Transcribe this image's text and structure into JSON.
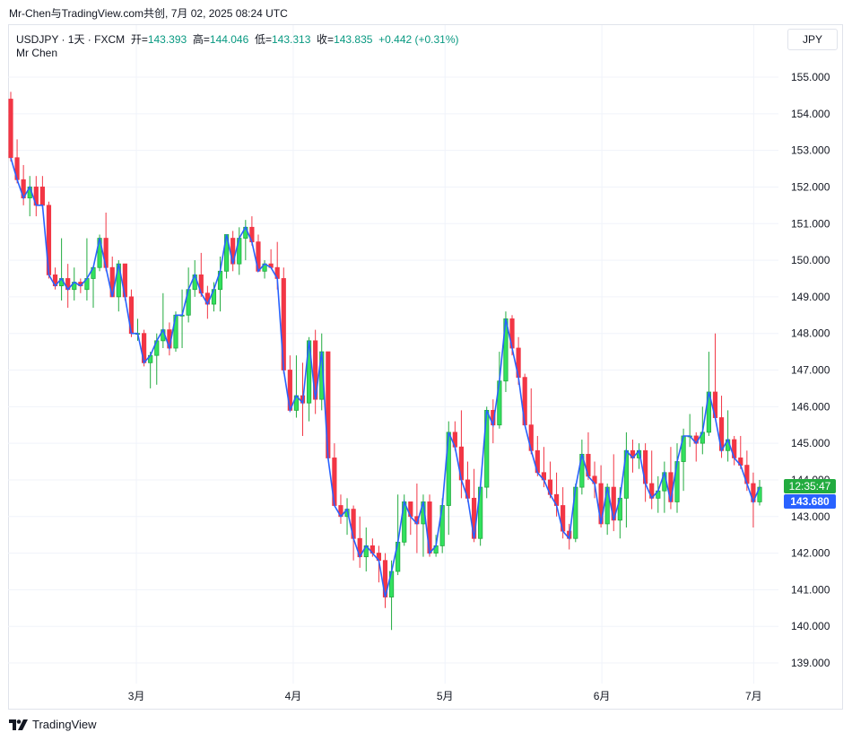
{
  "header": {
    "caption": "Mr-Chen与TradingView.com共创, 7月 02, 2025 08:24 UTC"
  },
  "legend": {
    "symbol": "USDJPY · 1天 · FXCM",
    "open_label": "开=",
    "open": "143.393",
    "high_label": "高=",
    "high": "144.046",
    "low_label": "低=",
    "low": "143.313",
    "close_label": "收=",
    "close": "143.835",
    "change": "+0.442 (+0.31%)",
    "author": "Mr Chen"
  },
  "currency_button": "JPY",
  "last_price": {
    "countdown": "12:35:47",
    "price": "143.680"
  },
  "footer": {
    "brand": "TradingView"
  },
  "colors": {
    "up": "#22ab3f",
    "up_fill": "#32e15e",
    "down": "#f23645",
    "line": "#2962ff",
    "grid": "#f0f3fa"
  },
  "chart_data": {
    "type": "candlestick",
    "y_axis": {
      "min": 138.5,
      "max": 155.5,
      "ticks": [
        "139.000",
        "140.000",
        "141.000",
        "142.000",
        "143.000",
        "144.000",
        "145.000",
        "146.000",
        "147.000",
        "148.000",
        "149.000",
        "150.000",
        "151.000",
        "152.000",
        "153.000",
        "154.000",
        "155.000"
      ]
    },
    "x_axis": {
      "ticks": [
        {
          "label": "3月",
          "date": "2025-03-01"
        },
        {
          "label": "4月",
          "date": "2025-04-01"
        },
        {
          "label": "5月",
          "date": "2025-05-01"
        },
        {
          "label": "6月",
          "date": "2025-06-01"
        },
        {
          "label": "7月",
          "date": "2025-07-01"
        }
      ]
    },
    "start_date": "2025-02-04",
    "end_date": "2025-07-02",
    "candles": [
      [
        154.4,
        154.6,
        152.7,
        152.8
      ],
      [
        152.8,
        153.3,
        152.1,
        152.2
      ],
      [
        152.2,
        152.6,
        151.5,
        151.7
      ],
      [
        151.7,
        152.3,
        151.2,
        152.0
      ],
      [
        152.0,
        152.3,
        151.2,
        151.5
      ],
      [
        152.0,
        152.3,
        151.4,
        151.5
      ],
      [
        151.5,
        151.6,
        149.5,
        149.6
      ],
      [
        149.6,
        149.8,
        149.2,
        149.3
      ],
      [
        149.3,
        150.6,
        148.9,
        149.5
      ],
      [
        149.5,
        149.9,
        148.7,
        149.2
      ],
      [
        149.2,
        149.8,
        148.9,
        149.4
      ],
      [
        149.4,
        149.5,
        149.1,
        149.3
      ],
      [
        149.2,
        150.6,
        148.9,
        149.5
      ],
      [
        149.5,
        149.8,
        148.7,
        149.8
      ],
      [
        149.8,
        150.7,
        149.7,
        150.6
      ],
      [
        150.6,
        151.3,
        149.7,
        149.8
      ],
      [
        149.8,
        150.1,
        149.0,
        149.0
      ],
      [
        149.0,
        150.0,
        148.6,
        149.9
      ],
      [
        149.9,
        149.9,
        148.9,
        149.0
      ],
      [
        149.0,
        149.2,
        147.9,
        148.0
      ],
      [
        148.0,
        148.4,
        147.8,
        148.0
      ],
      [
        148.0,
        148.1,
        147.1,
        147.2
      ],
      [
        147.2,
        147.5,
        146.5,
        147.4
      ],
      [
        147.4,
        148.0,
        146.6,
        147.8
      ],
      [
        147.8,
        149.1,
        147.6,
        148.1
      ],
      [
        148.1,
        148.3,
        147.4,
        147.6
      ],
      [
        147.6,
        148.6,
        147.5,
        148.5
      ],
      [
        148.5,
        149.2,
        147.6,
        148.5
      ],
      [
        148.5,
        149.8,
        148.3,
        149.2
      ],
      [
        149.2,
        150.0,
        149.0,
        149.6
      ],
      [
        149.6,
        150.2,
        149.0,
        149.1
      ],
      [
        149.1,
        149.3,
        148.4,
        148.8
      ],
      [
        148.8,
        149.4,
        148.6,
        149.2
      ],
      [
        149.2,
        150.1,
        148.6,
        149.7
      ],
      [
        149.7,
        150.7,
        149.5,
        150.7
      ],
      [
        150.6,
        150.8,
        149.7,
        149.9
      ],
      [
        149.9,
        150.9,
        149.6,
        150.6
      ],
      [
        150.6,
        151.1,
        150.0,
        150.9
      ],
      [
        150.9,
        151.2,
        150.4,
        150.5
      ],
      [
        150.5,
        150.7,
        149.8,
        149.7
      ],
      [
        149.7,
        150.0,
        149.5,
        149.9
      ],
      [
        149.9,
        150.3,
        149.8,
        149.8
      ],
      [
        149.8,
        150.5,
        149.2,
        149.5
      ],
      [
        149.5,
        149.8,
        146.9,
        147.0
      ],
      [
        147.0,
        147.4,
        146.0,
        145.9
      ],
      [
        145.9,
        147.4,
        145.7,
        146.3
      ],
      [
        146.3,
        147.2,
        145.2,
        146.1
      ],
      [
        146.1,
        147.9,
        145.6,
        147.8
      ],
      [
        147.8,
        148.1,
        145.8,
        146.2
      ],
      [
        146.2,
        148.0,
        145.9,
        147.5
      ],
      [
        147.5,
        147.5,
        144.7,
        144.6
      ],
      [
        144.6,
        145.0,
        143.3,
        143.3
      ],
      [
        143.3,
        143.6,
        142.8,
        143.0
      ],
      [
        143.0,
        143.5,
        142.5,
        143.2
      ],
      [
        143.2,
        143.3,
        141.8,
        142.4
      ],
      [
        142.4,
        143.0,
        141.6,
        141.9
      ],
      [
        141.9,
        142.7,
        141.5,
        142.2
      ],
      [
        142.2,
        142.4,
        141.9,
        142.0
      ],
      [
        142.0,
        142.2,
        141.2,
        141.8
      ],
      [
        141.8,
        142.0,
        140.5,
        140.8
      ],
      [
        140.8,
        141.8,
        139.9,
        141.5
      ],
      [
        141.5,
        143.6,
        141.4,
        142.3
      ],
      [
        142.3,
        143.6,
        142.2,
        143.4
      ],
      [
        143.4,
        143.4,
        142.5,
        143.0
      ],
      [
        143.0,
        143.9,
        142.0,
        142.8
      ],
      [
        142.8,
        143.6,
        141.9,
        143.4
      ],
      [
        143.4,
        143.6,
        141.9,
        142.0
      ],
      [
        142.0,
        142.5,
        141.9,
        142.2
      ],
      [
        142.2,
        143.5,
        142.0,
        143.3
      ],
      [
        143.3,
        145.6,
        142.5,
        145.3
      ],
      [
        145.3,
        145.6,
        144.8,
        144.9
      ],
      [
        144.9,
        145.9,
        143.5,
        144.0
      ],
      [
        144.0,
        144.5,
        143.4,
        143.5
      ],
      [
        143.5,
        144.3,
        142.3,
        142.4
      ],
      [
        142.4,
        143.8,
        142.2,
        143.8
      ],
      [
        143.8,
        146.0,
        143.5,
        145.9
      ],
      [
        145.9,
        146.2,
        145.0,
        145.5
      ],
      [
        145.5,
        147.5,
        145.4,
        146.7
      ],
      [
        146.7,
        148.6,
        146.4,
        148.4
      ],
      [
        148.4,
        148.5,
        147.4,
        147.6
      ],
      [
        147.6,
        147.9,
        146.6,
        146.8
      ],
      [
        146.8,
        146.9,
        145.6,
        145.5
      ],
      [
        145.5,
        146.5,
        144.7,
        144.8
      ],
      [
        144.8,
        145.2,
        144.1,
        144.2
      ],
      [
        144.2,
        144.9,
        143.8,
        144.0
      ],
      [
        144.0,
        144.5,
        143.5,
        143.6
      ],
      [
        143.6,
        144.2,
        143.0,
        143.3
      ],
      [
        143.3,
        143.8,
        142.4,
        142.6
      ],
      [
        142.6,
        142.8,
        142.1,
        142.4
      ],
      [
        142.4,
        143.9,
        142.3,
        143.8
      ],
      [
        143.8,
        145.1,
        143.6,
        144.7
      ],
      [
        144.7,
        145.3,
        144.0,
        144.1
      ],
      [
        144.1,
        144.5,
        143.5,
        143.9
      ],
      [
        143.9,
        144.4,
        142.7,
        142.8
      ],
      [
        142.8,
        143.9,
        142.5,
        143.8
      ],
      [
        143.8,
        144.7,
        142.6,
        142.9
      ],
      [
        142.9,
        143.8,
        142.4,
        143.5
      ],
      [
        143.5,
        145.3,
        142.7,
        144.8
      ],
      [
        144.8,
        145.1,
        144.2,
        144.6
      ],
      [
        144.6,
        145.0,
        144.3,
        144.8
      ],
      [
        144.8,
        145.0,
        143.4,
        143.9
      ],
      [
        143.9,
        144.8,
        143.2,
        143.5
      ],
      [
        143.5,
        144.1,
        143.1,
        143.7
      ],
      [
        143.7,
        144.5,
        143.1,
        144.2
      ],
      [
        144.2,
        144.9,
        143.2,
        143.4
      ],
      [
        143.4,
        145.0,
        143.1,
        144.5
      ],
      [
        144.5,
        145.4,
        143.7,
        145.2
      ],
      [
        145.2,
        145.8,
        144.9,
        145.2
      ],
      [
        145.2,
        145.3,
        144.5,
        145.0
      ],
      [
        145.0,
        146.0,
        144.7,
        145.3
      ],
      [
        145.3,
        147.5,
        145.2,
        146.4
      ],
      [
        146.4,
        148.0,
        145.8,
        145.7
      ],
      [
        145.7,
        146.3,
        144.6,
        144.8
      ],
      [
        144.8,
        145.9,
        144.5,
        145.1
      ],
      [
        145.1,
        145.2,
        144.4,
        144.6
      ],
      [
        144.6,
        145.2,
        144.3,
        144.4
      ],
      [
        144.4,
        144.8,
        143.7,
        143.9
      ],
      [
        143.9,
        144.2,
        142.7,
        143.4
      ],
      [
        143.4,
        144.0,
        143.3,
        143.8
      ]
    ]
  }
}
